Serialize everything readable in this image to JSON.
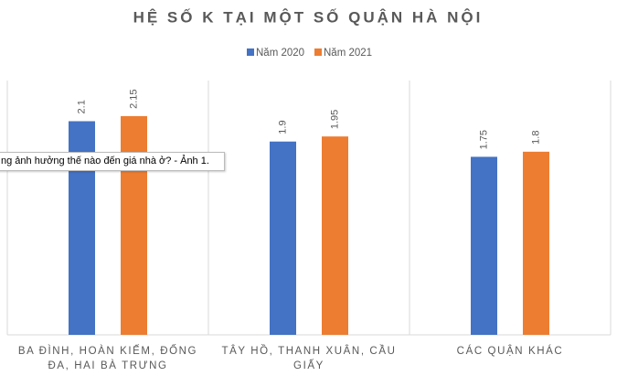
{
  "chart_data": {
    "type": "bar",
    "title": "HỆ SỐ K TẠI MỘT SỐ QUẬN HÀ NỘI",
    "categories": [
      "BA ĐÌNH, HOÀN KIẾM, ĐỐNG ĐA, HAI BÀ TRƯNG",
      "TÂY HỒ, THANH XUÂN, CẦU GIẤY",
      "CÁC QUẬN KHÁC"
    ],
    "series": [
      {
        "name": "Năm 2020",
        "color": "#4472c4",
        "values": [
          2.1,
          1.9,
          1.75
        ]
      },
      {
        "name": "Năm 2021",
        "color": "#ed7d31",
        "values": [
          2.15,
          1.95,
          1.8
        ]
      }
    ],
    "ylim": [
      0,
      2.5
    ],
    "legend": "top"
  },
  "tooltip": "ng ảnh hưởng thế nào đến giá nhà ở? - Ảnh 1."
}
